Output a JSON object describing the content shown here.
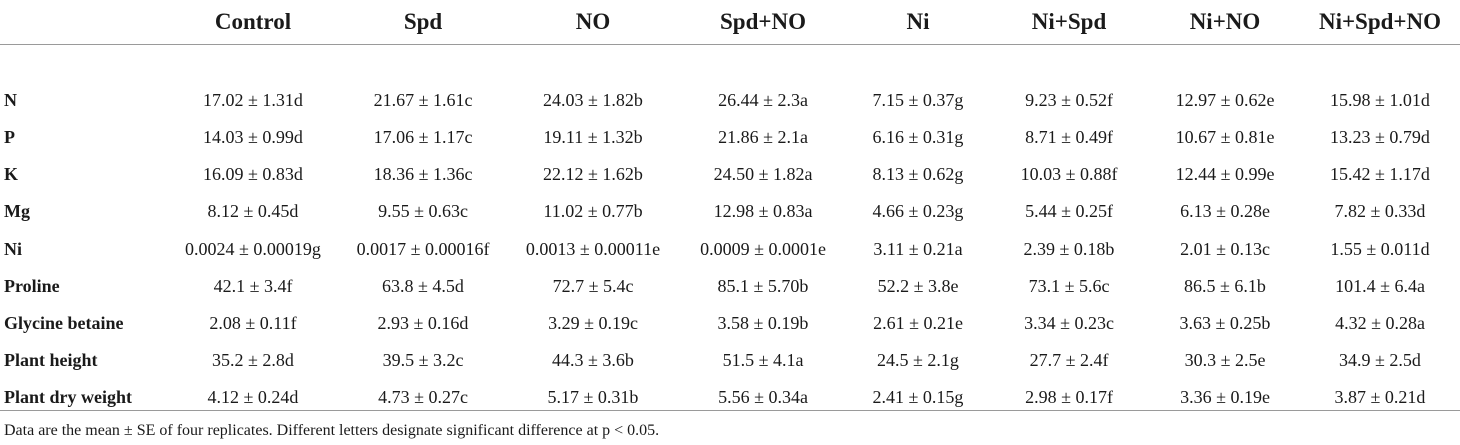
{
  "table": {
    "columns": [
      "",
      "Control",
      "Spd",
      "NO",
      "Spd+NO",
      "Ni",
      "Ni+Spd",
      "Ni+NO",
      "Ni+Spd+NO"
    ],
    "rows": [
      {
        "label": "N",
        "cells": [
          "17.02 ± 1.31d",
          "21.67 ± 1.61c",
          "24.03 ± 1.82b",
          "26.44 ± 2.3a",
          "7.15 ± 0.37g",
          "9.23 ± 0.52f",
          "12.97 ± 0.62e",
          "15.98 ± 1.01d"
        ]
      },
      {
        "label": "P",
        "cells": [
          "14.03 ± 0.99d",
          "17.06 ± 1.17c",
          "19.11 ± 1.32b",
          "21.86 ± 2.1a",
          "6.16 ± 0.31g",
          "8.71 ± 0.49f",
          "10.67 ± 0.81e",
          "13.23 ± 0.79d"
        ]
      },
      {
        "label": "K",
        "cells": [
          "16.09 ± 0.83d",
          "18.36 ± 1.36c",
          "22.12 ± 1.62b",
          "24.50 ± 1.82a",
          "8.13 ± 0.62g",
          "10.03 ± 0.88f",
          "12.44 ± 0.99e",
          "15.42 ± 1.17d"
        ]
      },
      {
        "label": "Mg",
        "cells": [
          "8.12 ± 0.45d",
          "9.55 ± 0.63c",
          "11.02 ± 0.77b",
          "12.98 ± 0.83a",
          "4.66 ± 0.23g",
          "5.44 ± 0.25f",
          "6.13 ± 0.28e",
          "7.82 ± 0.33d"
        ]
      },
      {
        "label": "Ni",
        "cells": [
          "0.0024 ± 0.00019g",
          "0.0017 ± 0.00016f",
          "0.0013 ± 0.00011e",
          "0.0009 ± 0.0001e",
          "3.11 ± 0.21a",
          "2.39 ± 0.18b",
          "2.01 ± 0.13c",
          "1.55 ± 0.011d"
        ]
      },
      {
        "label": "Proline",
        "cells": [
          "42.1 ± 3.4f",
          "63.8 ± 4.5d",
          "72.7 ± 5.4c",
          "85.1 ± 5.70b",
          "52.2 ± 3.8e",
          "73.1 ± 5.6c",
          "86.5 ± 6.1b",
          "101.4 ± 6.4a"
        ]
      },
      {
        "label": "Glycine betaine",
        "cells": [
          "2.08 ± 0.11f",
          "2.93 ± 0.16d",
          "3.29 ± 0.19c",
          "3.58 ± 0.19b",
          "2.61 ± 0.21e",
          "3.34 ± 0.23c",
          "3.63 ± 0.25b",
          "4.32 ± 0.28a"
        ]
      },
      {
        "label": "Plant height",
        "cells": [
          "35.2 ± 2.8d",
          "39.5 ± 3.2c",
          "44.3 ± 3.6b",
          "51.5 ± 4.1a",
          "24.5 ± 2.1g",
          "27.7 ± 2.4f",
          "30.3 ± 2.5e",
          "34.9 ± 2.5d"
        ]
      },
      {
        "label": "Plant dry weight",
        "cells": [
          "4.12 ± 0.24d",
          "4.73 ± 0.27c",
          "5.17 ± 0.31b",
          "5.56 ± 0.34a",
          "2.41 ± 0.15g",
          "2.98 ± 0.17f",
          "3.36 ± 0.19e",
          "3.87 ± 0.21d"
        ]
      }
    ]
  },
  "footnote": "Data are the mean ± SE of four replicates. Different letters designate significant difference at p < 0.05."
}
